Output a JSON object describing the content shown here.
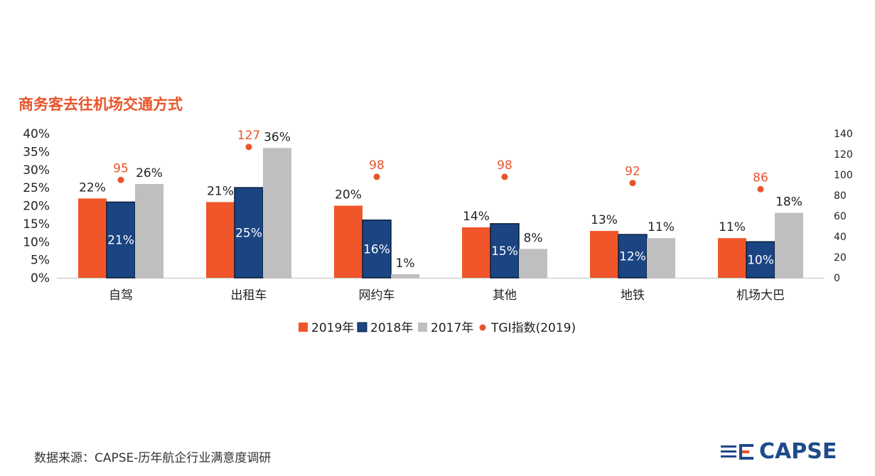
{
  "title": "商务客去往机场交通方式",
  "footer": "数据来源：CAPSE-历年航企行业满意度调研",
  "logo": {
    "text": "CAPSE",
    "icon": "capse-lines-icon"
  },
  "colors": {
    "s2019": "#f0562a",
    "s2018": "#1b4482",
    "s2017": "#bfbfbf",
    "tgi": "#e8542a"
  },
  "chart_data": {
    "type": "bar",
    "categories": [
      "自驾",
      "出租车",
      "网约车",
      "其他",
      "地铁",
      "机场大巴"
    ],
    "series": [
      {
        "name": "2019年",
        "values": [
          22,
          21,
          20,
          14,
          13,
          11
        ],
        "labels": [
          "22%",
          "21%",
          "20%",
          "14%",
          "13%",
          "11%"
        ]
      },
      {
        "name": "2018年",
        "values": [
          21,
          25,
          16,
          15,
          12,
          10
        ],
        "labels": [
          "21%",
          "25%",
          "16%",
          "15%",
          "12%",
          "10%"
        ]
      },
      {
        "name": "2017年",
        "values": [
          26,
          36,
          1,
          8,
          11,
          18
        ],
        "labels": [
          "26%",
          "36%",
          "1%",
          "8%",
          "11%",
          "18%"
        ]
      }
    ],
    "tgi": {
      "name": "TGI指数(2019)",
      "values": [
        95,
        127,
        98,
        98,
        92,
        86
      ],
      "labels": [
        "95",
        "127",
        "98",
        "98",
        "92",
        "86"
      ]
    },
    "ylim": [
      0,
      40
    ],
    "yticks": [
      "0%",
      "5%",
      "10%",
      "15%",
      "20%",
      "25%",
      "30%",
      "35%",
      "40%"
    ],
    "y2lim": [
      0,
      140
    ],
    "y2ticks": [
      "0",
      "20",
      "40",
      "60",
      "80",
      "100",
      "120",
      "140"
    ],
    "legend_position": "bottom"
  }
}
